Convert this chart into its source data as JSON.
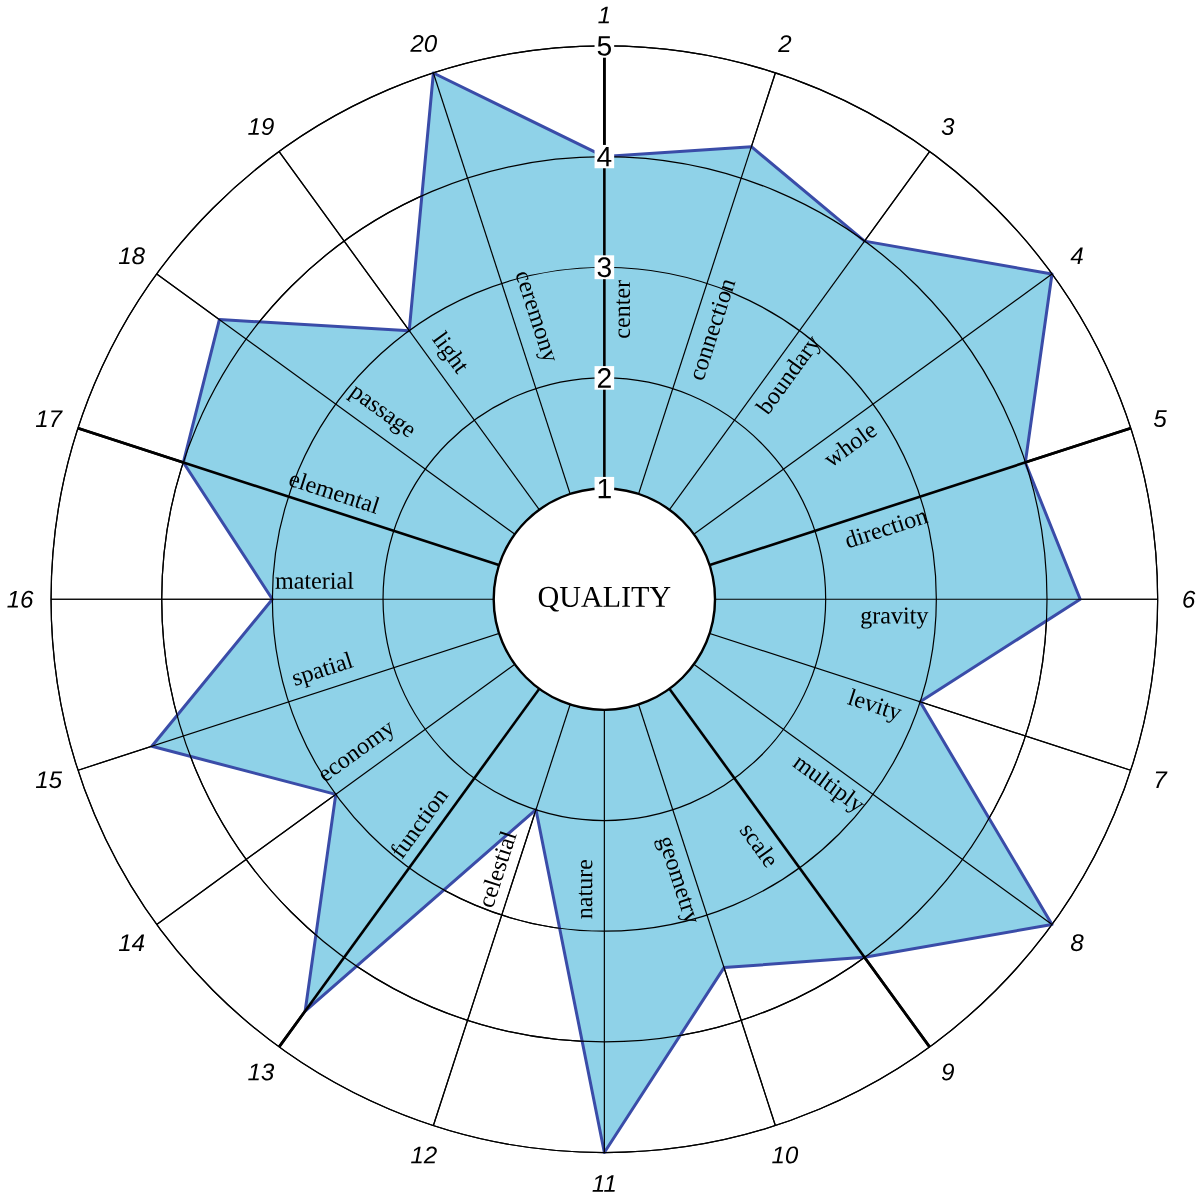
{
  "chart_data": {
    "type": "radar",
    "title": "QUALITY",
    "categories": [
      "1",
      "2",
      "3",
      "4",
      "5",
      "6",
      "7",
      "8",
      "9",
      "10",
      "11",
      "12",
      "13",
      "14",
      "15",
      "16",
      "17",
      "18",
      "19",
      "20"
    ],
    "series": [
      {
        "color": "#8fd2e8",
        "values": [
          4,
          4.3,
          4,
          5,
          4,
          4.3,
          3,
          5,
          4,
          3.5,
          5,
          2,
          4.6,
          3,
          4.3,
          3,
          4,
          4.3,
          3,
          5
        ]
      }
    ],
    "ylim": [
      0,
      5
    ],
    "yticks": [
      1,
      2,
      3,
      4,
      5
    ],
    "grid": true,
    "annotations": [
      {
        "text": "center",
        "x": "1"
      },
      {
        "text": "connection",
        "x": "2"
      },
      {
        "text": "boundary",
        "x": "3"
      },
      {
        "text": "whole",
        "x": "4"
      },
      {
        "text": "direction",
        "x": "5"
      },
      {
        "text": "gravity",
        "x": "6"
      },
      {
        "text": "levity",
        "x": "7"
      },
      {
        "text": "multiply",
        "x": "8"
      },
      {
        "text": "scale",
        "x": "9"
      },
      {
        "text": "geometry",
        "x": "10"
      },
      {
        "text": "nature",
        "x": "11"
      },
      {
        "text": "celestial",
        "x": "12"
      },
      {
        "text": "function",
        "x": "13"
      },
      {
        "text": "economy",
        "x": "14"
      },
      {
        "text": "spatial",
        "x": "15"
      },
      {
        "text": "material",
        "x": "16"
      },
      {
        "text": "elemental",
        "x": "17"
      },
      {
        "text": "passage",
        "x": "18"
      },
      {
        "text": "light",
        "x": "19"
      },
      {
        "text": "ceremony",
        "x": "20"
      }
    ]
  }
}
